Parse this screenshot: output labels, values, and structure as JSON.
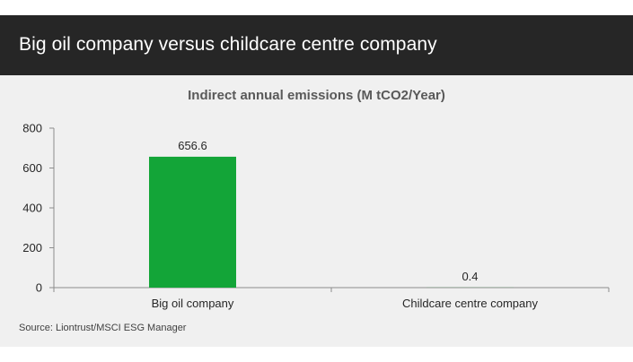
{
  "header": {
    "title": "Big oil company versus childcare centre company"
  },
  "source": "Source: Liontrust/MSCI ESG Manager",
  "colors": {
    "header_bg": "#262626",
    "panel_bg": "#f0f0f0",
    "bar": "#13a538"
  },
  "chart_data": {
    "type": "bar",
    "title": "Indirect annual emissions (M tCO2/Year)",
    "categories": [
      "Big oil company",
      "Childcare centre company"
    ],
    "values": [
      656.6,
      0.4
    ],
    "data_labels": [
      "656.6",
      "0.4"
    ],
    "ylim": [
      0,
      800
    ],
    "yticks": [
      0,
      200,
      400,
      600,
      800
    ],
    "xlabel": "",
    "ylabel": "",
    "grid": false,
    "legend": "none"
  }
}
